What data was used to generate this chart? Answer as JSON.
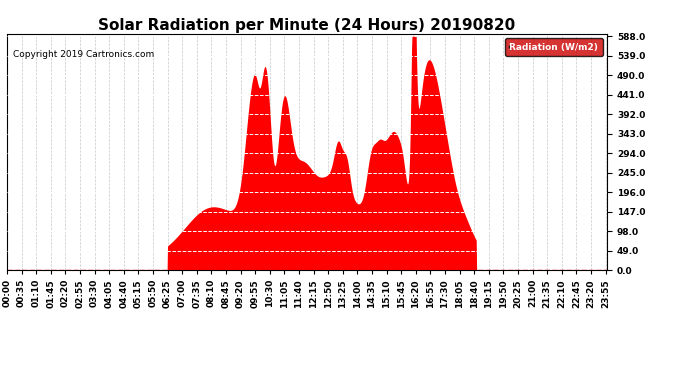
{
  "title": "Solar Radiation per Minute (24 Hours) 20190820",
  "copyright_text": "Copyright 2019 Cartronics.com",
  "legend_label": "Radiation (W/m2)",
  "yticks": [
    0.0,
    49.0,
    98.0,
    147.0,
    196.0,
    245.0,
    294.0,
    343.0,
    392.0,
    441.0,
    490.0,
    539.0,
    588.0
  ],
  "ymin": 0.0,
  "ymax": 588.0,
  "fill_color": "#ff0000",
  "line_color": "#cc0000",
  "background_color": "#ffffff",
  "grid_color_x": "#c8c8c8",
  "grid_color_y": "#ffffff",
  "title_fontsize": 11,
  "tick_fontsize": 6.5,
  "legend_bg": "#cc0000",
  "legend_text_color": "#ffffff",
  "xtick_step": 35,
  "total_minutes": 1440
}
